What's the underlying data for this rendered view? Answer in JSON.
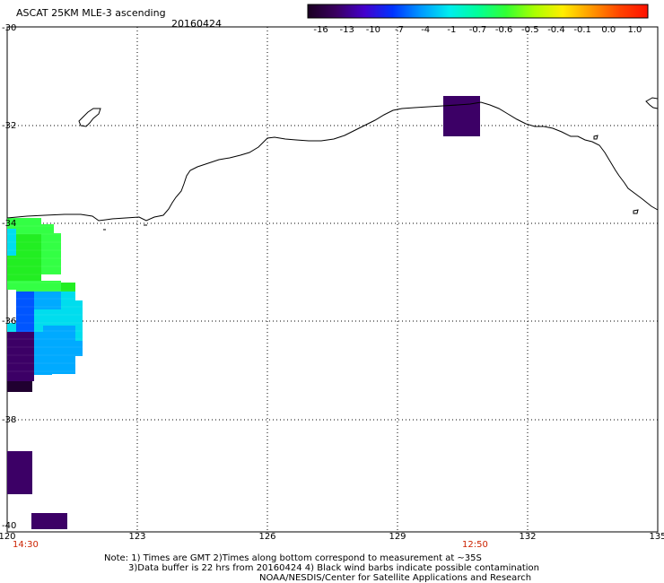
{
  "header": {
    "title": "ASCAT 25KM MLE-3 ascending",
    "date": "20160424"
  },
  "colorbar": {
    "labels": [
      "-16",
      "-13",
      "-10",
      "-7",
      "-4",
      "-1",
      "-0.7",
      "-0.6",
      "-0.5",
      "-0.4",
      "-0.1",
      "0.0",
      "1.0"
    ],
    "colors": [
      "#1a0022",
      "#3a0060",
      "#4400cc",
      "#0033ff",
      "#0099ff",
      "#00eeee",
      "#00ff99",
      "#33ff33",
      "#aaff00",
      "#ffee00",
      "#ff9900",
      "#ff4400",
      "#ff1100"
    ]
  },
  "axes": {
    "lat_labels": [
      "-30",
      "-32",
      "-34",
      "-36",
      "-38",
      "-40"
    ],
    "lon_labels": [
      "120",
      "123",
      "126",
      "129",
      "132",
      "135"
    ]
  },
  "times": {
    "left": "14:30",
    "right": "12:50"
  },
  "notes": {
    "line1": "Note: 1) Times are GMT 2)Times along bottom correspond to measurement at ~35S",
    "line2": "3)Data buffer is 22 hrs from 20160424 4) Black wind barbs indicate possible contamination",
    "line3": "NOAA/NESDIS/Center for Satellite Applications and Research"
  },
  "swath": {
    "colors": {
      "green": "#22ee22",
      "lightgreen": "#33ff44",
      "cyan": "#00ddee",
      "skyblue": "#00aaff",
      "blue": "#0055ff",
      "purple": "#3c0066",
      "darkpurple": "#200030"
    }
  }
}
